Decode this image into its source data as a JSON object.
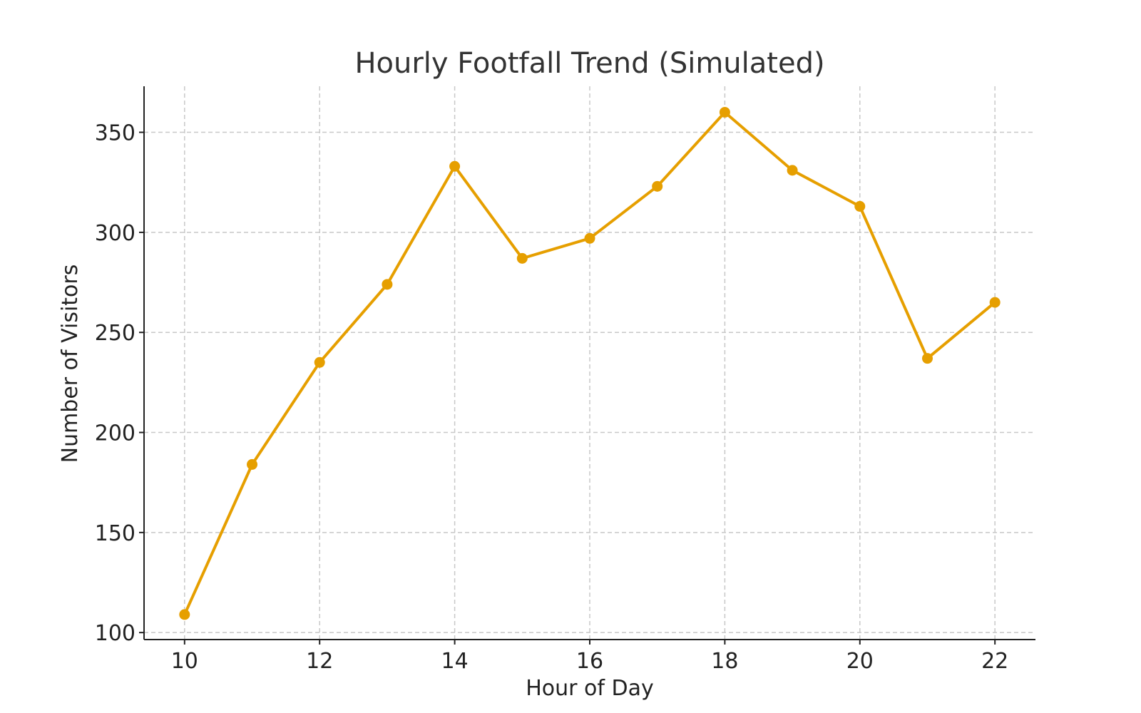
{
  "chart_data": {
    "type": "line",
    "title": "Hourly Footfall Trend (Simulated)",
    "xlabel": "Hour of Day",
    "ylabel": "Number of Visitors",
    "x": [
      10,
      11,
      12,
      13,
      14,
      15,
      16,
      17,
      18,
      19,
      20,
      21,
      22
    ],
    "series": [
      {
        "values": [
          109,
          184,
          235,
          274,
          333,
          287,
          297,
          323,
          360,
          331,
          313,
          237,
          265
        ],
        "color": "#E69F00",
        "marker": "circle"
      }
    ],
    "xticks": [
      10,
      12,
      14,
      16,
      18,
      20,
      22
    ],
    "yticks": [
      100,
      150,
      200,
      250,
      300,
      350
    ],
    "xlim": [
      9.4,
      22.6
    ],
    "ylim": [
      96.5,
      373
    ],
    "grid": true,
    "grid_style": "dashed"
  }
}
